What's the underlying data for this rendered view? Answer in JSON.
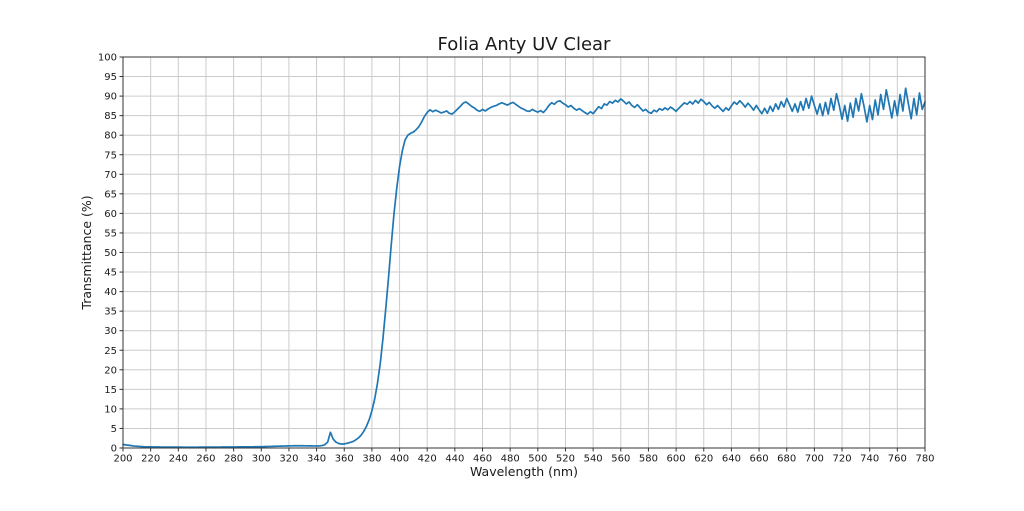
{
  "figure": {
    "title": "Folia Anty UV Clear",
    "xlabel": "Wavelength (nm)",
    "ylabel": "Transmittance (%)"
  },
  "chart_data": {
    "type": "line",
    "title": "Folia Anty UV Clear",
    "xlabel": "Wavelength (nm)",
    "ylabel": "Transmittance (%)",
    "xlim": [
      200,
      780
    ],
    "ylim": [
      0,
      100
    ],
    "x_ticks": [
      200,
      220,
      240,
      260,
      280,
      300,
      320,
      340,
      360,
      380,
      400,
      420,
      440,
      460,
      480,
      500,
      520,
      540,
      560,
      580,
      600,
      620,
      640,
      660,
      680,
      700,
      720,
      740,
      760,
      780
    ],
    "y_ticks": [
      0,
      5,
      10,
      15,
      20,
      25,
      30,
      35,
      40,
      45,
      50,
      55,
      60,
      65,
      70,
      75,
      80,
      85,
      90,
      95,
      100
    ],
    "grid": true,
    "legend_position": "none",
    "line_color": "#1f77b4",
    "grid_color": "#cccccc",
    "spine_color": "#333333",
    "description": "Transmittance near 0% from 200-360 nm (small spike ~4% at 350 nm), steep rise 370-410 nm, plateau oscillating 84-92% from 420-780 nm with noise amplitude growing toward 780 nm",
    "series": [
      {
        "name": "Transmittance",
        "x_start": 200,
        "x_step": 2,
        "values": [
          0.9,
          0.8,
          0.7,
          0.6,
          0.5,
          0.45,
          0.4,
          0.35,
          0.3,
          0.3,
          0.28,
          0.26,
          0.25,
          0.25,
          0.24,
          0.24,
          0.23,
          0.23,
          0.22,
          0.22,
          0.22,
          0.22,
          0.21,
          0.21,
          0.21,
          0.21,
          0.21,
          0.21,
          0.22,
          0.22,
          0.22,
          0.22,
          0.23,
          0.23,
          0.24,
          0.24,
          0.25,
          0.25,
          0.26,
          0.26,
          0.27,
          0.27,
          0.28,
          0.28,
          0.29,
          0.3,
          0.3,
          0.31,
          0.32,
          0.33,
          0.34,
          0.36,
          0.38,
          0.4,
          0.42,
          0.44,
          0.46,
          0.48,
          0.5,
          0.52,
          0.54,
          0.56,
          0.57,
          0.58,
          0.58,
          0.57,
          0.56,
          0.55,
          0.54,
          0.53,
          0.52,
          0.55,
          0.62,
          0.85,
          1.5,
          4.0,
          2.3,
          1.5,
          1.15,
          1.0,
          1.05,
          1.2,
          1.4,
          1.6,
          2.0,
          2.5,
          3.2,
          4.2,
          5.5,
          7.2,
          9.5,
          12.5,
          16.5,
          21.5,
          28.0,
          35.5,
          43.5,
          52.0,
          60.0,
          66.5,
          72.0,
          76.0,
          78.8,
          80.0,
          80.5,
          80.8,
          81.4,
          82.2,
          83.4,
          84.8,
          85.8,
          86.5,
          86.0,
          86.4,
          86.1,
          85.7,
          85.9,
          86.2,
          85.6,
          85.4,
          86.0,
          86.7,
          87.4,
          88.2,
          88.5,
          88.0,
          87.4,
          87.0,
          86.4,
          86.1,
          86.6,
          86.2,
          86.7,
          87.1,
          87.4,
          87.6,
          88.0,
          88.3,
          88.0,
          87.7,
          88.1,
          88.4,
          87.9,
          87.4,
          86.9,
          86.6,
          86.2,
          86.1,
          86.6,
          86.2,
          85.9,
          86.3,
          85.8,
          86.6,
          87.6,
          88.3,
          87.9,
          88.6,
          88.8,
          88.2,
          87.8,
          87.2,
          87.6,
          86.9,
          86.4,
          86.8,
          86.3,
          85.8,
          85.4,
          86.0,
          85.5,
          86.4,
          87.3,
          86.8,
          88.0,
          87.7,
          88.6,
          88.2,
          88.9,
          88.5,
          89.3,
          88.7,
          88.0,
          88.5,
          87.6,
          87.1,
          87.8,
          87.0,
          86.2,
          86.6,
          85.9,
          85.6,
          86.4,
          86.0,
          86.8,
          86.4,
          87.0,
          86.5,
          87.2,
          86.7,
          86.1,
          86.9,
          87.6,
          88.3,
          87.9,
          88.6,
          88.0,
          88.9,
          88.2,
          89.2,
          88.6,
          87.8,
          88.4,
          87.5,
          86.9,
          87.6,
          86.8,
          86.1,
          87.0,
          86.4,
          87.5,
          88.5,
          87.9,
          88.8,
          88.1,
          87.2,
          88.2,
          87.4,
          86.4,
          87.6,
          86.5,
          85.5,
          86.9,
          85.6,
          87.4,
          86.1,
          88.0,
          86.6,
          88.6,
          87.2,
          89.4,
          87.8,
          86.1,
          88.0,
          85.9,
          88.6,
          86.4,
          89.4,
          86.9,
          90.0,
          87.6,
          85.4,
          88.0,
          85.0,
          88.4,
          85.4,
          89.4,
          86.4,
          90.6,
          87.6,
          84.1,
          87.6,
          83.6,
          88.2,
          84.6,
          89.4,
          86.2,
          90.6,
          87.2,
          83.4,
          87.6,
          84.0,
          89.0,
          85.2,
          90.4,
          86.6,
          91.6,
          88.0,
          84.4,
          88.8,
          85.0,
          90.4,
          86.2,
          92.0,
          88.0,
          84.2,
          89.4,
          85.2,
          90.8,
          86.6,
          88.5
        ]
      }
    ]
  }
}
